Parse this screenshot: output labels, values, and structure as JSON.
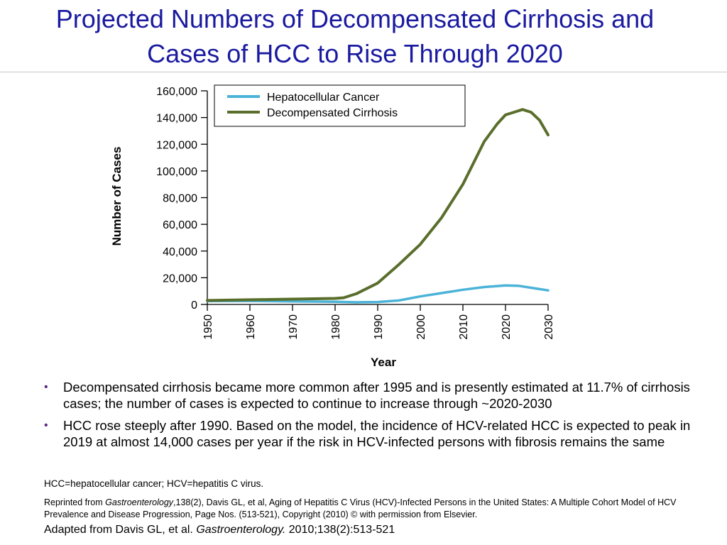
{
  "slide": {
    "title_line1": "Projected Numbers of Decompensated Cirrhosis and",
    "title_line2": "Cases of HCC to Rise Through 2020"
  },
  "chart_data": {
    "type": "line",
    "title": "",
    "xlabel": "Year",
    "ylabel": "Number of Cases",
    "xlim": [
      1950,
      2030
    ],
    "ylim": [
      0,
      160000
    ],
    "x_ticks": [
      "1950",
      "1960",
      "1970",
      "1980",
      "1990",
      "2000",
      "2010",
      "2020",
      "2030"
    ],
    "y_ticks": [
      "0",
      "20,000",
      "40,000",
      "60,000",
      "80,000",
      "100,000",
      "120,000",
      "140,000",
      "160,000"
    ],
    "legend_position": "top",
    "grid": false,
    "series": [
      {
        "name": "Hepatocellular Cancer",
        "color": "#4bb3d8",
        "x": [
          1950,
          1960,
          1970,
          1980,
          1985,
          1990,
          1995,
          2000,
          2005,
          2010,
          2015,
          2020,
          2023,
          2026,
          2030
        ],
        "y": [
          2500,
          2600,
          2300,
          2000,
          1600,
          1800,
          3000,
          6000,
          8500,
          11000,
          13000,
          14200,
          14000,
          12500,
          10500
        ]
      },
      {
        "name": "Decompensated Cirrhosis",
        "color": "#5a6e2c",
        "x": [
          1950,
          1960,
          1970,
          1980,
          1982,
          1985,
          1990,
          1995,
          2000,
          2005,
          2010,
          2015,
          2018,
          2020,
          2022,
          2024,
          2026,
          2028,
          2030
        ],
        "y": [
          3000,
          3500,
          4000,
          4500,
          5000,
          8000,
          16000,
          30000,
          45000,
          65000,
          90000,
          122000,
          135000,
          142000,
          144000,
          146000,
          144000,
          138000,
          127000
        ]
      }
    ]
  },
  "bullets": [
    "Decompensated cirrhosis became more common after 1995 and is presently estimated at 11.7% of cirrhosis cases; the number of cases is expected to continue to increase through ~2020-2030",
    "HCC rose steeply after 1990. Based on the model, the incidence of HCV-related HCC is expected to peak in 2019 at almost 14,000 cases per year if the risk in HCV-infected persons with fibrosis remains the same"
  ],
  "bullet_glyph": "•",
  "footnotes": {
    "abbreviations": "HCC=hepatocellular cancer; HCV=hepatitis C virus.",
    "reprint_prefix": "Reprinted from ",
    "reprint_journal": "Gastroenterology",
    "reprint_rest": ",138(2), Davis GL, et al, Aging of Hepatitis C Virus (HCV)-Infected Persons in the United States: A Multiple Cohort Model of HCV Prevalence and Disease Progression, Page Nos. (513-521), Copyright (2010) © with permission from Elsevier.",
    "adapted_prefix": "Adapted from Davis GL, et al. ",
    "adapted_journal": "Gastroenterology.",
    "adapted_rest": " 2010;138(2):513-521"
  }
}
